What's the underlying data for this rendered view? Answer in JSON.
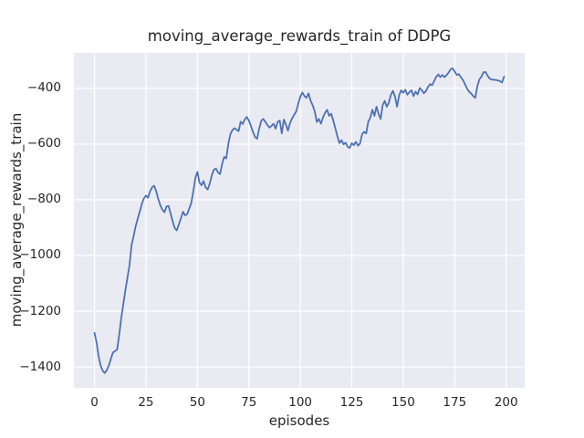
{
  "chart_data": {
    "type": "line",
    "title": "moving_average_rewards_train of DDPG",
    "xlabel": "episodes",
    "ylabel": "moving_average_rewards_train",
    "legend": "none",
    "grid": "major, white on lavender panel (seaborn darkgrid)",
    "xlim": [
      -10,
      209
    ],
    "ylim": [
      -1475,
      -273
    ],
    "xticks": {
      "values": [
        0,
        25,
        50,
        75,
        100,
        125,
        150,
        175,
        200
      ],
      "labels": [
        "0",
        "25",
        "50",
        "75",
        "100",
        "125",
        "150",
        "175",
        "200"
      ]
    },
    "yticks": {
      "values": [
        -400,
        -600,
        -800,
        -1000,
        -1200,
        -1400
      ],
      "labels": [
        "−400",
        "−600",
        "−800",
        "−1000",
        "−1200",
        "−1400"
      ]
    },
    "x_start": 0,
    "x_step": 1,
    "values": [
      -1278,
      -1312,
      -1362,
      -1396,
      -1414,
      -1422,
      -1411,
      -1394,
      -1370,
      -1348,
      -1343,
      -1338,
      -1285,
      -1225,
      -1175,
      -1125,
      -1080,
      -1035,
      -963,
      -930,
      -895,
      -868,
      -843,
      -815,
      -795,
      -785,
      -793,
      -770,
      -755,
      -750,
      -770,
      -798,
      -820,
      -836,
      -845,
      -824,
      -822,
      -850,
      -878,
      -902,
      -910,
      -888,
      -866,
      -843,
      -856,
      -852,
      -833,
      -812,
      -770,
      -722,
      -700,
      -738,
      -748,
      -733,
      -756,
      -763,
      -742,
      -712,
      -692,
      -688,
      -702,
      -708,
      -672,
      -646,
      -652,
      -600,
      -565,
      -550,
      -543,
      -548,
      -554,
      -520,
      -528,
      -512,
      -503,
      -516,
      -535,
      -556,
      -575,
      -581,
      -545,
      -517,
      -510,
      -520,
      -532,
      -541,
      -535,
      -527,
      -545,
      -520,
      -516,
      -562,
      -512,
      -530,
      -552,
      -525,
      -508,
      -495,
      -483,
      -455,
      -430,
      -415,
      -428,
      -434,
      -418,
      -445,
      -461,
      -483,
      -521,
      -510,
      -527,
      -505,
      -488,
      -477,
      -499,
      -491,
      -516,
      -543,
      -572,
      -597,
      -586,
      -601,
      -595,
      -610,
      -614,
      -597,
      -604,
      -592,
      -606,
      -598,
      -565,
      -556,
      -562,
      -520,
      -505,
      -477,
      -499,
      -466,
      -492,
      -510,
      -461,
      -445,
      -466,
      -452,
      -423,
      -409,
      -430,
      -466,
      -425,
      -407,
      -416,
      -405,
      -423,
      -414,
      -407,
      -428,
      -412,
      -422,
      -399,
      -406,
      -418,
      -410,
      -396,
      -385,
      -389,
      -374,
      -359,
      -350,
      -360,
      -352,
      -360,
      -353,
      -344,
      -332,
      -328,
      -340,
      -352,
      -349,
      -360,
      -370,
      -385,
      -401,
      -412,
      -419,
      -428,
      -434,
      -392,
      -368,
      -358,
      -342,
      -342,
      -355,
      -365,
      -369,
      -369,
      -370,
      -372,
      -374,
      -379,
      -358
    ],
    "style": {
      "line_color": "#4c72b0",
      "plot_background": "#eaeaf2",
      "grid_color": "#ffffff",
      "text_color": "#262626",
      "figure_background": "#ffffff"
    }
  }
}
